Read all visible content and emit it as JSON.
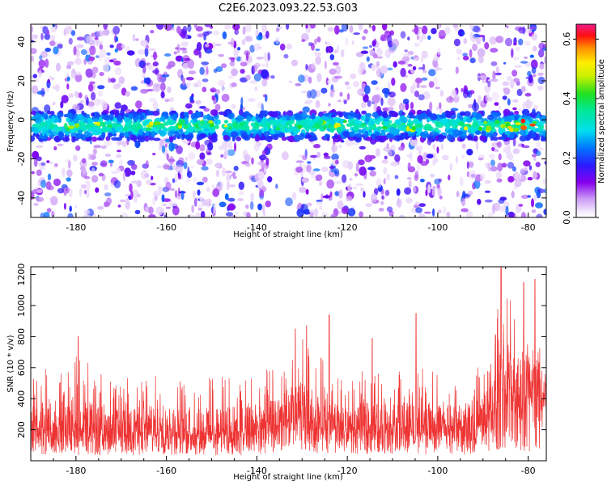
{
  "title": "C2E6.2023.093.22.53.G03",
  "chart_data": [
    {
      "type": "heatmap",
      "xlabel": "Height of straight line (km)",
      "ylabel": "Frequency (Hz)",
      "xlim": [
        -190,
        -76
      ],
      "ylim": [
        -50,
        49
      ],
      "xticks": [
        -180,
        -160,
        -140,
        -120,
        -100,
        -80
      ],
      "yticks": [
        -40,
        -20,
        0,
        20,
        40
      ],
      "colorbar": {
        "label": "Normalized spectral amplitude",
        "range": [
          0,
          0.65
        ],
        "ticks": [
          0.0,
          0.2,
          0.4,
          0.6
        ],
        "colormap": "rainbow (white-purple-blue-cyan-green-yellow-red-magenta)"
      },
      "band": {
        "center_hz": -3,
        "halfwidth_hz": 7
      },
      "background": "sparse purple speckle noise"
    },
    {
      "type": "line",
      "xlabel": "Height of straight line (km)",
      "ylabel": "SNR (10 * v/v)",
      "xlim": [
        -190,
        -76
      ],
      "ylim": [
        0,
        1250
      ],
      "xticks": [
        -180,
        -160,
        -140,
        -120,
        -100,
        -80
      ],
      "yticks": [
        200,
        400,
        600,
        800,
        1000,
        1200
      ],
      "color": "#ee3333",
      "envelope": {
        "x": [
          -190,
          -180,
          -172,
          -164,
          -156,
          -148,
          -140,
          -133,
          -130,
          -127,
          -122,
          -116,
          -110,
          -104,
          -100,
          -92,
          -89,
          -87,
          -86,
          -84,
          -82,
          -80,
          -78,
          -76
        ],
        "typical_max": [
          560,
          700,
          520,
          560,
          520,
          550,
          560,
          650,
          830,
          700,
          560,
          580,
          560,
          650,
          560,
          580,
          700,
          900,
          1240,
          1050,
          1000,
          1100,
          1000,
          760
        ],
        "typical_min": [
          40,
          30,
          40,
          30,
          40,
          30,
          40,
          60,
          60,
          40,
          40,
          40,
          40,
          40,
          40,
          40,
          60,
          60,
          80,
          60,
          60,
          60,
          60,
          60
        ],
        "baseline": [
          220,
          220,
          200,
          210,
          200,
          200,
          210,
          260,
          300,
          260,
          210,
          230,
          220,
          230,
          210,
          220,
          300,
          380,
          500,
          450,
          420,
          450,
          420,
          380
        ]
      },
      "peaks": [
        {
          "x": -179.5,
          "y": 800
        },
        {
          "x": -131.5,
          "y": 850
        },
        {
          "x": -129,
          "y": 870
        },
        {
          "x": -124,
          "y": 940
        },
        {
          "x": -114.5,
          "y": 790
        },
        {
          "x": -104.8,
          "y": 950
        },
        {
          "x": -86,
          "y": 1250
        },
        {
          "x": -81,
          "y": 1150
        },
        {
          "x": -78.5,
          "y": 1170
        }
      ]
    }
  ]
}
